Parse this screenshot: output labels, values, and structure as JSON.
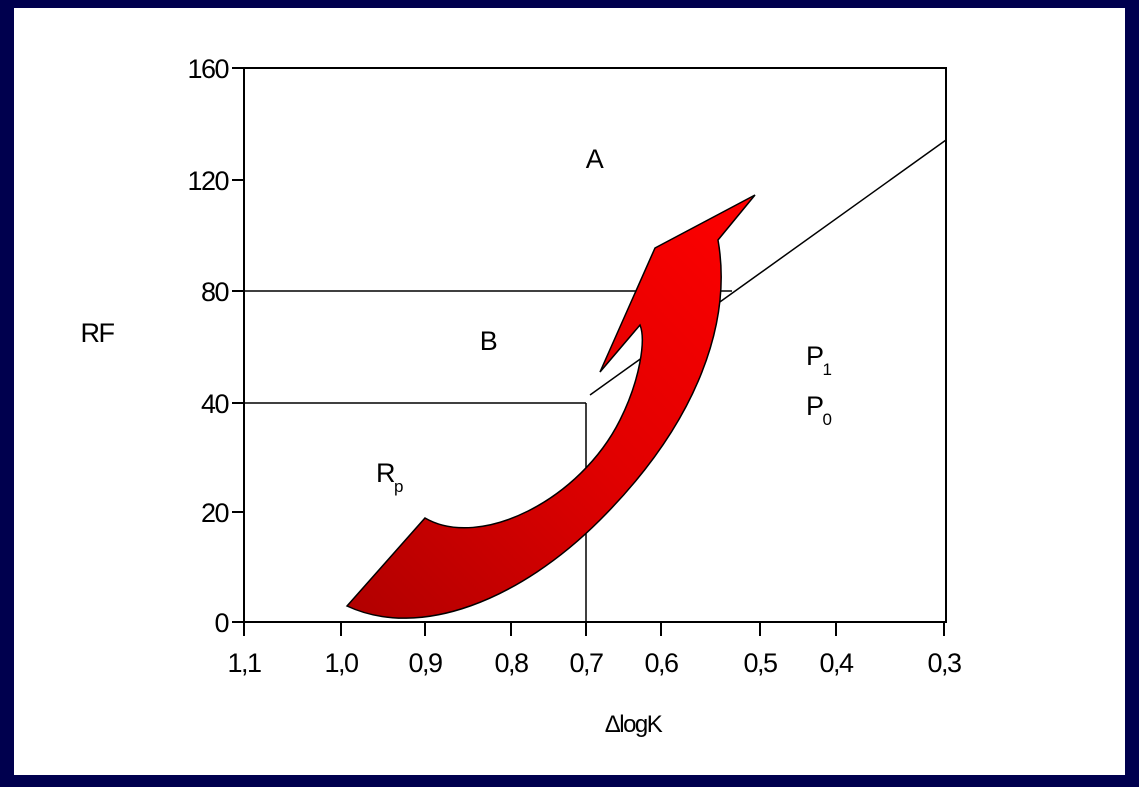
{
  "y_axis": {
    "label": "RF",
    "ticks": [
      "0",
      "20",
      "40",
      "80",
      "120",
      "160"
    ]
  },
  "x_axis": {
    "label": "ΔlogK",
    "ticks": [
      "1,1",
      "1,0",
      "0,9",
      "0,8",
      "0,7",
      "0,6",
      "0,5",
      "0,4",
      "0,3"
    ]
  },
  "regions": {
    "a": "A",
    "b": "B",
    "rp": {
      "main": "R",
      "sub": "p"
    },
    "p1": {
      "main": "P",
      "sub": "1"
    },
    "p0": {
      "main": "P",
      "sub": "0"
    }
  }
}
